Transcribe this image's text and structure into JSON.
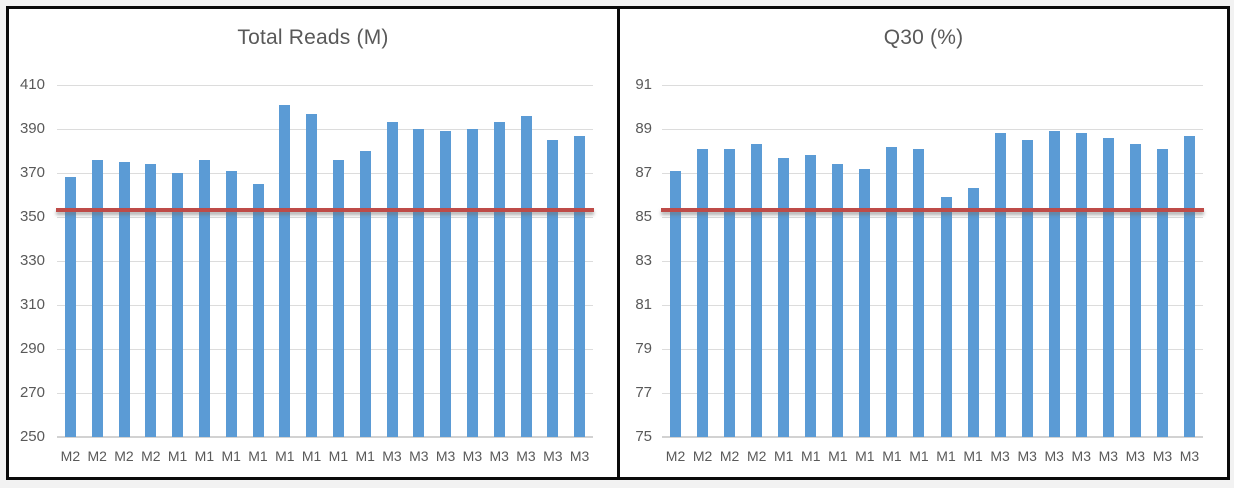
{
  "page": {
    "background": "#F2F2F2",
    "frame_border_color": "#0A0A0A"
  },
  "chart_data": [
    {
      "type": "bar",
      "title": "Total Reads (M)",
      "categories": [
        "M2",
        "M2",
        "M2",
        "M2",
        "M1",
        "M1",
        "M1",
        "M1",
        "M1",
        "M1",
        "M1",
        "M1",
        "M3",
        "M3",
        "M3",
        "M3",
        "M3",
        "M3",
        "M3",
        "M3"
      ],
      "values": [
        368,
        376,
        375,
        374,
        370,
        376,
        371,
        365,
        401,
        397,
        376,
        380,
        393,
        390,
        389,
        390,
        393,
        396,
        385,
        387
      ],
      "xlabel": "",
      "ylabel": "",
      "ylim": [
        250,
        410
      ],
      "yticks": [
        250,
        270,
        290,
        310,
        330,
        350,
        370,
        390,
        410
      ],
      "grid": true,
      "legend": "none",
      "bar_color": "#5B9BD5",
      "ref_line": {
        "value": 353,
        "color": "#BE4B48"
      },
      "text_color": "#595959",
      "grid_color": "#DCDCDC"
    },
    {
      "type": "bar",
      "title": "Q30 (%)",
      "categories": [
        "M2",
        "M2",
        "M2",
        "M2",
        "M1",
        "M1",
        "M1",
        "M1",
        "M1",
        "M1",
        "M1",
        "M1",
        "M3",
        "M3",
        "M3",
        "M3",
        "M3",
        "M3",
        "M3",
        "M3"
      ],
      "values": [
        87.1,
        88.1,
        88.1,
        88.3,
        87.7,
        87.8,
        87.4,
        87.2,
        88.2,
        88.1,
        85.9,
        86.3,
        88.8,
        88.5,
        88.9,
        88.8,
        88.6,
        88.3,
        88.1,
        88.7
      ],
      "xlabel": "",
      "ylabel": "",
      "ylim": [
        75,
        91
      ],
      "yticks": [
        75,
        77,
        79,
        81,
        83,
        85,
        87,
        89,
        91
      ],
      "grid": true,
      "legend": "none",
      "bar_color": "#5B9BD5",
      "ref_line": {
        "value": 85.3,
        "color": "#BE4B48"
      },
      "text_color": "#595959",
      "grid_color": "#DCDCDC"
    }
  ]
}
